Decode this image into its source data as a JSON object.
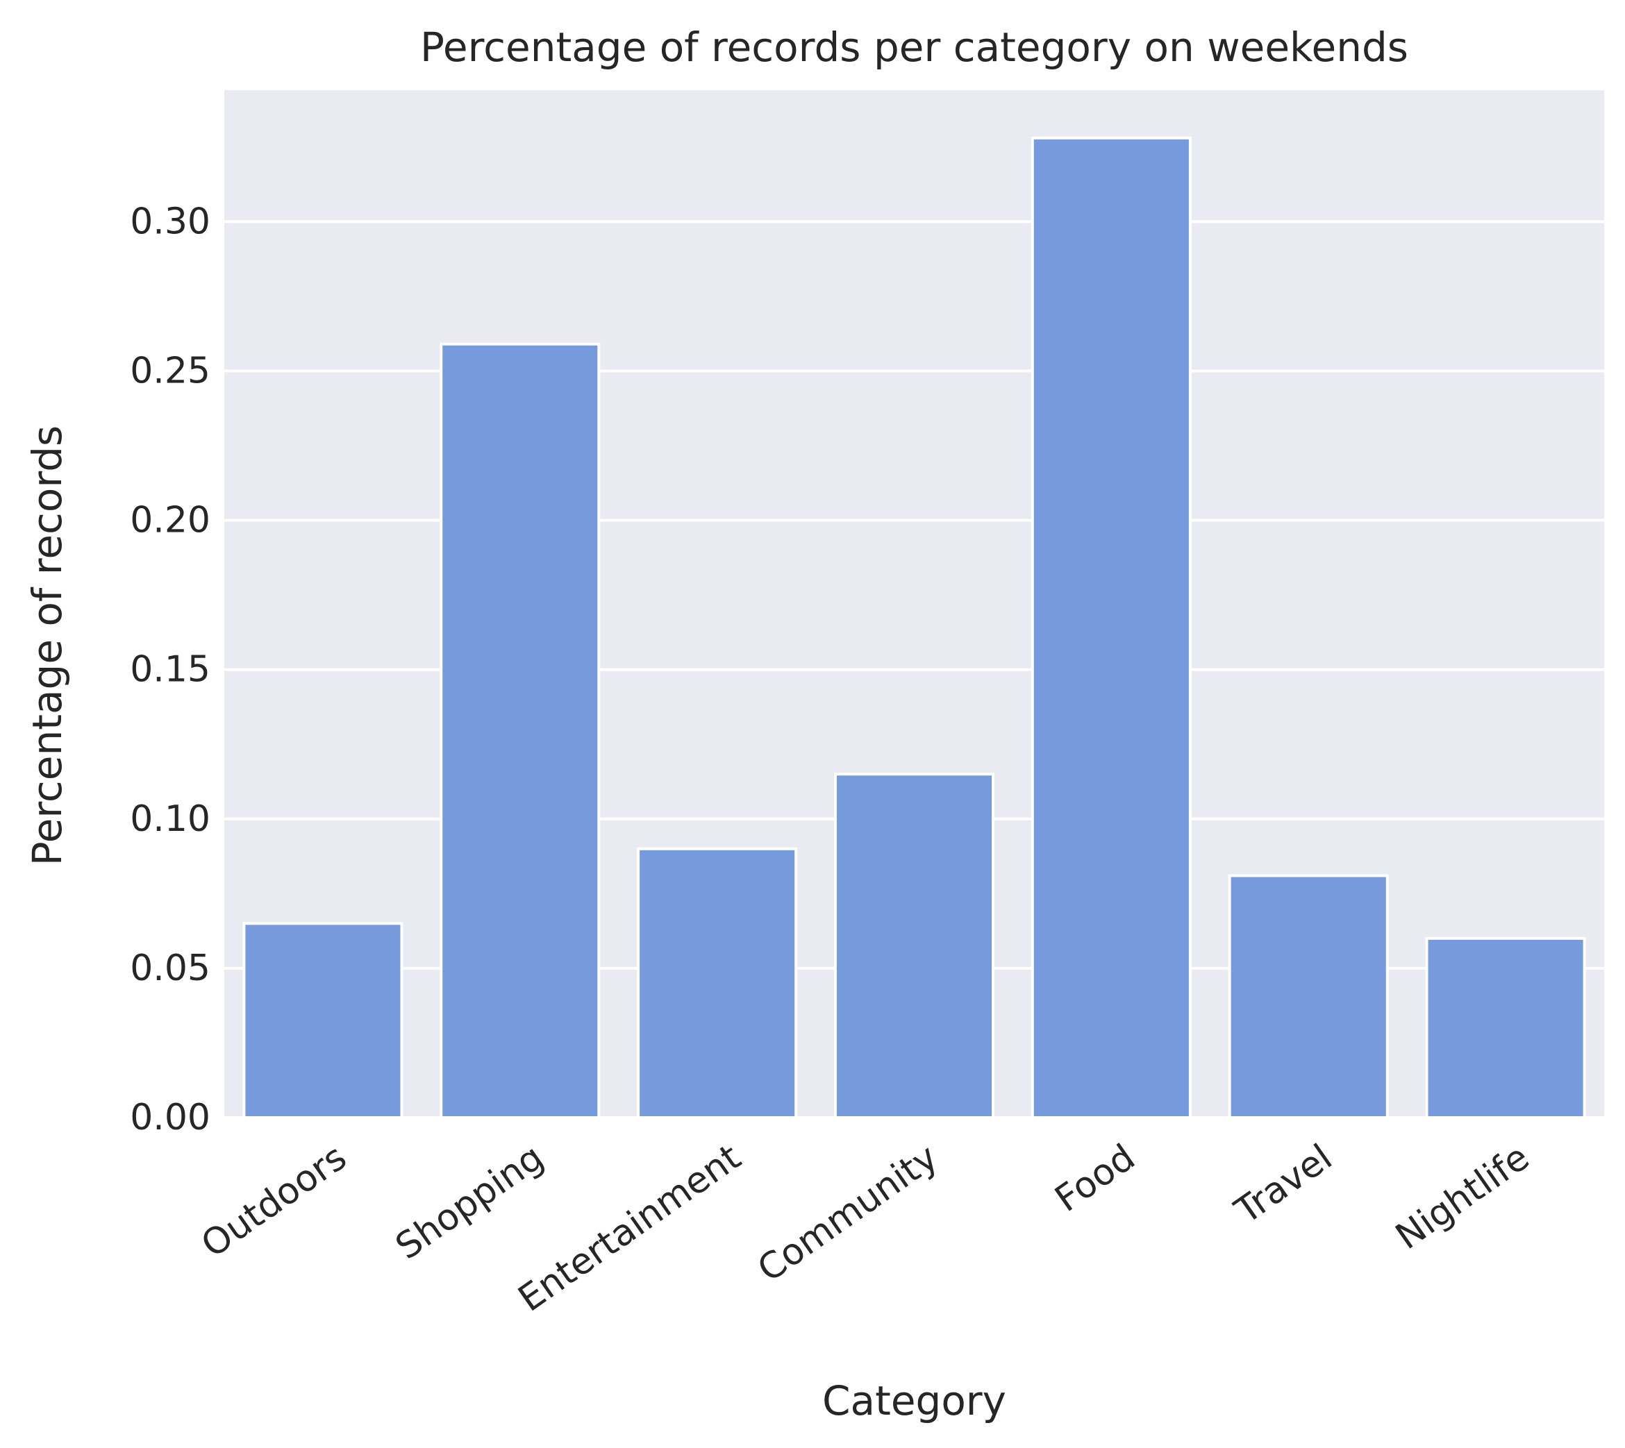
{
  "chart_data": {
    "type": "bar",
    "title": "Percentage of records per category on weekends",
    "xlabel": "Category",
    "ylabel": "Percentage of records",
    "categories": [
      "Outdoors",
      "Shopping",
      "Entertainment",
      "Community",
      "Food",
      "Travel",
      "Nightlife"
    ],
    "values": [
      0.065,
      0.259,
      0.09,
      0.115,
      0.328,
      0.081,
      0.06
    ],
    "ylim": [
      0,
      0.344
    ],
    "yticks": [
      0.0,
      0.05,
      0.1,
      0.15,
      0.2,
      0.25,
      0.3
    ],
    "ytick_labels": [
      "0.00",
      "0.05",
      "0.10",
      "0.15",
      "0.20",
      "0.25",
      "0.30"
    ],
    "grid": true,
    "colors": {
      "bar": "#769ADB",
      "background": "#EAEAF2",
      "grid": "#FFFFFF",
      "text": "#262626"
    }
  }
}
